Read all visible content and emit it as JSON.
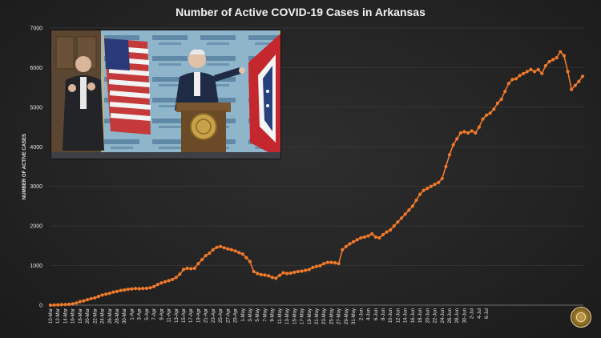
{
  "chart_data": {
    "type": "line",
    "title": "Number of Active COVID-19 Cases in Arkansas",
    "ylabel": "NUMBER OF ACTIVE CASES",
    "xlabel": "",
    "ylim": [
      0,
      7000
    ],
    "yticks": [
      0,
      1000,
      2000,
      3000,
      4000,
      5000,
      6000,
      7000
    ],
    "grid": true,
    "line_color": "#f07a2a",
    "x_tick_labels": [
      "10-Mar",
      "12-Mar",
      "14-Mar",
      "16-Mar",
      "18-Mar",
      "20-Mar",
      "22-Mar",
      "24-Mar",
      "26-Mar",
      "28-Mar",
      "30-Mar",
      "1-Apr",
      "3-Apr",
      "5-Apr",
      "7-Apr",
      "9-Apr",
      "11-Apr",
      "13-Apr",
      "15-Apr",
      "17-Apr",
      "19-Apr",
      "21-Apr",
      "23-Apr",
      "25-Apr",
      "27-Apr",
      "29-Apr",
      "1-May",
      "3-May",
      "5-May",
      "7-May",
      "9-May",
      "11-May",
      "13-May",
      "15-May",
      "17-May",
      "19-May",
      "21-May",
      "23-May",
      "25-May",
      "27-May",
      "29-May",
      "31-May",
      "2-Jun",
      "4-Jun",
      "6-Jun",
      "8-Jun",
      "10-Jun",
      "12-Jun",
      "14-Jun",
      "16-Jun",
      "18-Jun",
      "20-Jun",
      "22-Jun",
      "24-Jun",
      "26-Jun",
      "28-Jun",
      "30-Jun",
      "2-Jul",
      "4-Jul",
      "6-Jul"
    ],
    "series": [
      {
        "values": [
          1,
          5,
          9,
          12,
          16,
          22,
          33,
          55,
          90,
          110,
          140,
          165,
          185,
          220,
          255,
          280,
          300,
          330,
          345,
          370,
          385,
          400,
          410,
          420,
          415,
          420,
          425,
          440,
          470,
          520,
          560,
          590,
          620,
          650,
          700,
          780,
          900,
          930,
          920,
          930,
          1050,
          1150,
          1250,
          1310,
          1400,
          1460,
          1480,
          1450,
          1420,
          1400,
          1370,
          1330,
          1290,
          1200,
          1100,
          850,
          800,
          770,
          760,
          740,
          700,
          680,
          750,
          820,
          800,
          810,
          830,
          850,
          860,
          880,
          900,
          950,
          980,
          1000,
          1050,
          1080,
          1080,
          1070,
          1050,
          1400,
          1480,
          1550,
          1600,
          1650,
          1700,
          1720,
          1750,
          1800,
          1720,
          1700,
          1780,
          1850,
          1900,
          2000,
          2100,
          2200,
          2300,
          2400,
          2500,
          2650,
          2800,
          2900,
          2950,
          3000,
          3050,
          3100,
          3200,
          3500,
          3800,
          4050,
          4200,
          4350,
          4380,
          4350,
          4400,
          4350,
          4500,
          4700,
          4800,
          4850,
          4950,
          5100,
          5200,
          5400,
          5600,
          5700,
          5720,
          5800,
          5850,
          5900,
          5950,
          5900,
          5950,
          5850,
          6050,
          6150,
          6200,
          6250,
          6400,
          6300,
          5900,
          5450,
          5550,
          5650,
          5780
        ]
      }
    ]
  }
}
